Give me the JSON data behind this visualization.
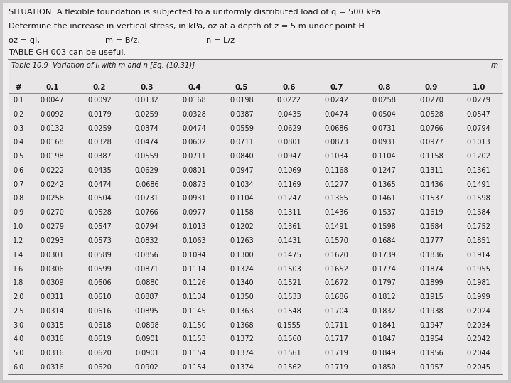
{
  "situation_line1": "SITUATION: A flexible foundation is subjected to a uniformly distributed load of q = 500 kPa",
  "situation_line2": "Determine the increase in vertical stress, in kPa, oz at a depth of z = 5 m under point H.",
  "formula1": "oz = qI,",
  "formula2": "m = B/z,",
  "formula3": "n = L/z",
  "table_note": "TABLE GH 003 can be useful.",
  "table_title": "Table 10.9  Variation of Iⱼ with m and n [Eq. (10.31)]",
  "col_header": [
    "#",
    "0.1",
    "0.2",
    "0.3",
    "0.4",
    "0.5",
    "0.6",
    "0.7",
    "0.8",
    "0.9",
    "1.0"
  ],
  "m_label": "m",
  "row_labels": [
    "0.1",
    "0.2",
    "0.3",
    "0.4",
    "0.5",
    "0.6",
    "0.7",
    "0.8",
    "0.9",
    "1.0",
    "1.2",
    "1.4",
    "1.6",
    "1.8",
    "2.0",
    "2.5",
    "3.0",
    "4.0",
    "5.0",
    "6.0"
  ],
  "table_data": [
    [
      0.0047,
      0.0092,
      0.0132,
      0.0168,
      0.0198,
      0.0222,
      0.0242,
      0.0258,
      0.027,
      0.0279
    ],
    [
      0.0092,
      0.0179,
      0.0259,
      0.0328,
      0.0387,
      0.0435,
      0.0474,
      0.0504,
      0.0528,
      0.0547
    ],
    [
      0.0132,
      0.0259,
      0.0374,
      0.0474,
      0.0559,
      0.0629,
      0.0686,
      0.0731,
      0.0766,
      0.0794
    ],
    [
      0.0168,
      0.0328,
      0.0474,
      0.0602,
      0.0711,
      0.0801,
      0.0873,
      0.0931,
      0.0977,
      0.1013
    ],
    [
      0.0198,
      0.0387,
      0.0559,
      0.0711,
      0.084,
      0.0947,
      0.1034,
      0.1104,
      0.1158,
      0.1202
    ],
    [
      0.0222,
      0.0435,
      0.0629,
      0.0801,
      0.0947,
      0.1069,
      0.1168,
      0.1247,
      0.1311,
      0.1361
    ],
    [
      0.0242,
      0.0474,
      0.0686,
      0.0873,
      0.1034,
      0.1169,
      0.1277,
      0.1365,
      0.1436,
      0.1491
    ],
    [
      0.0258,
      0.0504,
      0.0731,
      0.0931,
      0.1104,
      0.1247,
      0.1365,
      0.1461,
      0.1537,
      0.1598
    ],
    [
      0.027,
      0.0528,
      0.0766,
      0.0977,
      0.1158,
      0.1311,
      0.1436,
      0.1537,
      0.1619,
      0.1684
    ],
    [
      0.0279,
      0.0547,
      0.0794,
      0.1013,
      0.1202,
      0.1361,
      0.1491,
      0.1598,
      0.1684,
      0.1752
    ],
    [
      0.0293,
      0.0573,
      0.0832,
      0.1063,
      0.1263,
      0.1431,
      0.157,
      0.1684,
      0.1777,
      0.1851
    ],
    [
      0.0301,
      0.0589,
      0.0856,
      0.1094,
      0.13,
      0.1475,
      0.162,
      0.1739,
      0.1836,
      0.1914
    ],
    [
      0.0306,
      0.0599,
      0.0871,
      0.1114,
      0.1324,
      0.1503,
      0.1652,
      0.1774,
      0.1874,
      0.1955
    ],
    [
      0.0309,
      0.0606,
      0.088,
      0.1126,
      0.134,
      0.1521,
      0.1672,
      0.1797,
      0.1899,
      0.1981
    ],
    [
      0.0311,
      0.061,
      0.0887,
      0.1134,
      0.135,
      0.1533,
      0.1686,
      0.1812,
      0.1915,
      0.1999
    ],
    [
      0.0314,
      0.0616,
      0.0895,
      0.1145,
      0.1363,
      0.1548,
      0.1704,
      0.1832,
      0.1938,
      0.2024
    ],
    [
      0.0315,
      0.0618,
      0.0898,
      0.115,
      0.1368,
      0.1555,
      0.1711,
      0.1841,
      0.1947,
      0.2034
    ],
    [
      0.0316,
      0.0619,
      0.0901,
      0.1153,
      0.1372,
      0.156,
      0.1717,
      0.1847,
      0.1954,
      0.2042
    ],
    [
      0.0316,
      0.062,
      0.0901,
      0.1154,
      0.1374,
      0.1561,
      0.1719,
      0.1849,
      0.1956,
      0.2044
    ],
    [
      0.0316,
      0.062,
      0.0902,
      0.1154,
      0.1374,
      0.1562,
      0.1719,
      0.185,
      0.1957,
      0.2045
    ]
  ],
  "outer_bg": "#c8c8c8",
  "inner_bg": "#f0eeee",
  "text_color": "#1a1a1a",
  "table_inner_bg": "#e8e6e6"
}
